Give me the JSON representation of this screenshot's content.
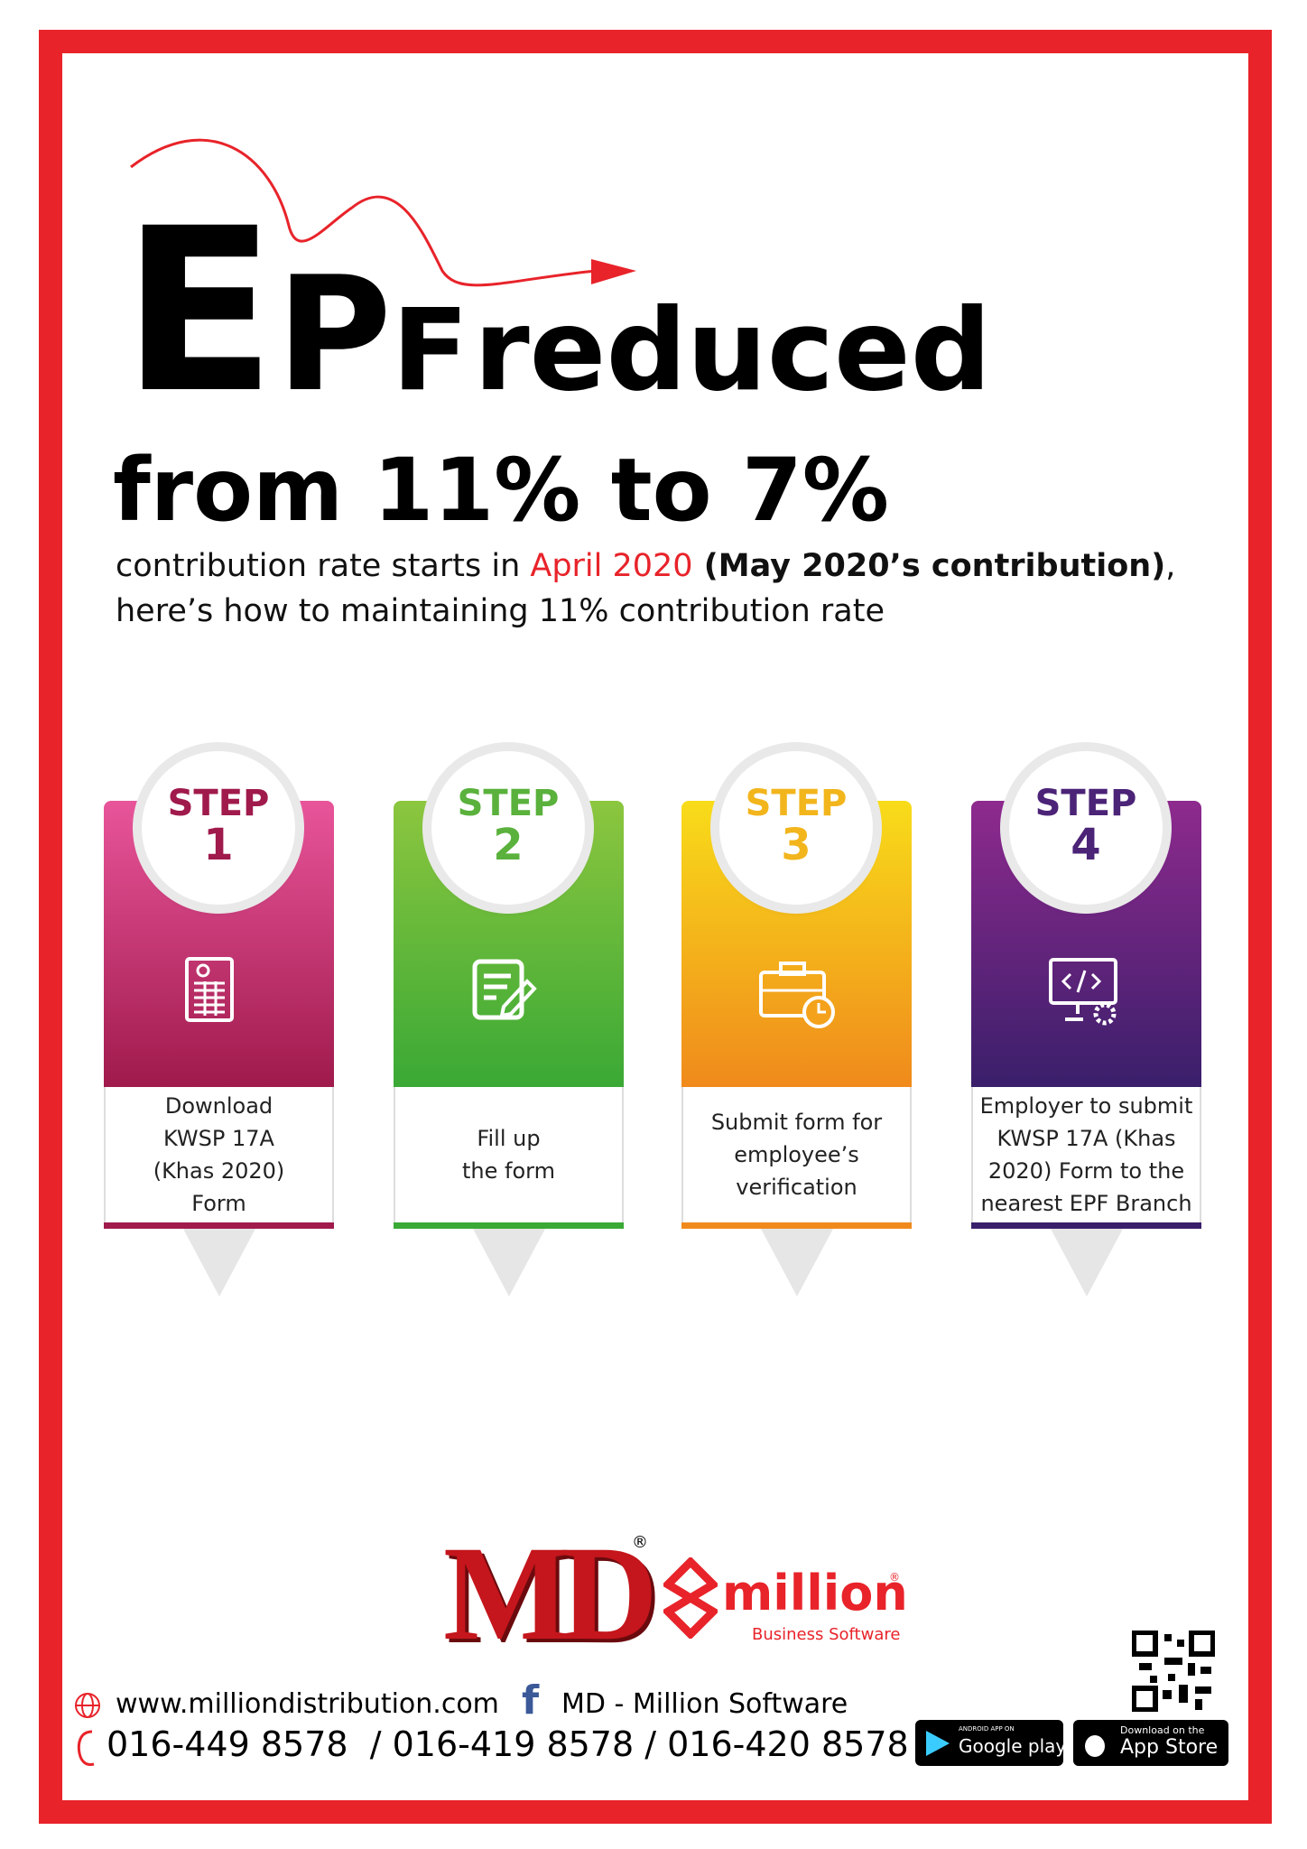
{
  "header": {
    "title_letters": [
      "E",
      "P",
      "F"
    ],
    "title_word": "reduced",
    "headline": "from 11% to 7%",
    "subtitle": {
      "line1_parts": [
        "contribution rate starts in ",
        "April 2020",
        " (May 2020’s contribution)",
        ","
      ],
      "line2": "here’s how to maintaining 11% contribution rate"
    }
  },
  "steps": [
    {
      "label": "STEP",
      "number": 1,
      "lines": [
        "Download",
        "KWSP 17A",
        "(Khas 2020)",
        "Form"
      ]
    },
    {
      "label": "STEP",
      "number": 2,
      "lines": [
        "Fill up",
        "the form"
      ]
    },
    {
      "label": "STEP",
      "number": 3,
      "lines": [
        "Submit form for",
        "employee’s",
        "verification"
      ]
    },
    {
      "label": "STEP",
      "number": 4,
      "lines": [
        "Employer to submit",
        "KWSP 17A (Khas",
        "2020) Form to the",
        "nearest EPF Branch"
      ]
    }
  ],
  "logos": {
    "md": "MD",
    "registered": "®",
    "million": "million",
    "million_registered": "®",
    "tagline": "Business Software"
  },
  "footer": {
    "website": "www.milliondistribution.com",
    "facebook_icon": "f",
    "facebook": "MD - Million Software",
    "phones": "016-449 8578  / 016-419 8578 / 016-420 8578",
    "google_badge": {
      "small": "ANDROID APP ON",
      "big": "Google play"
    },
    "apple_badge": {
      "small": "Download on the",
      "big": "App Store"
    }
  }
}
